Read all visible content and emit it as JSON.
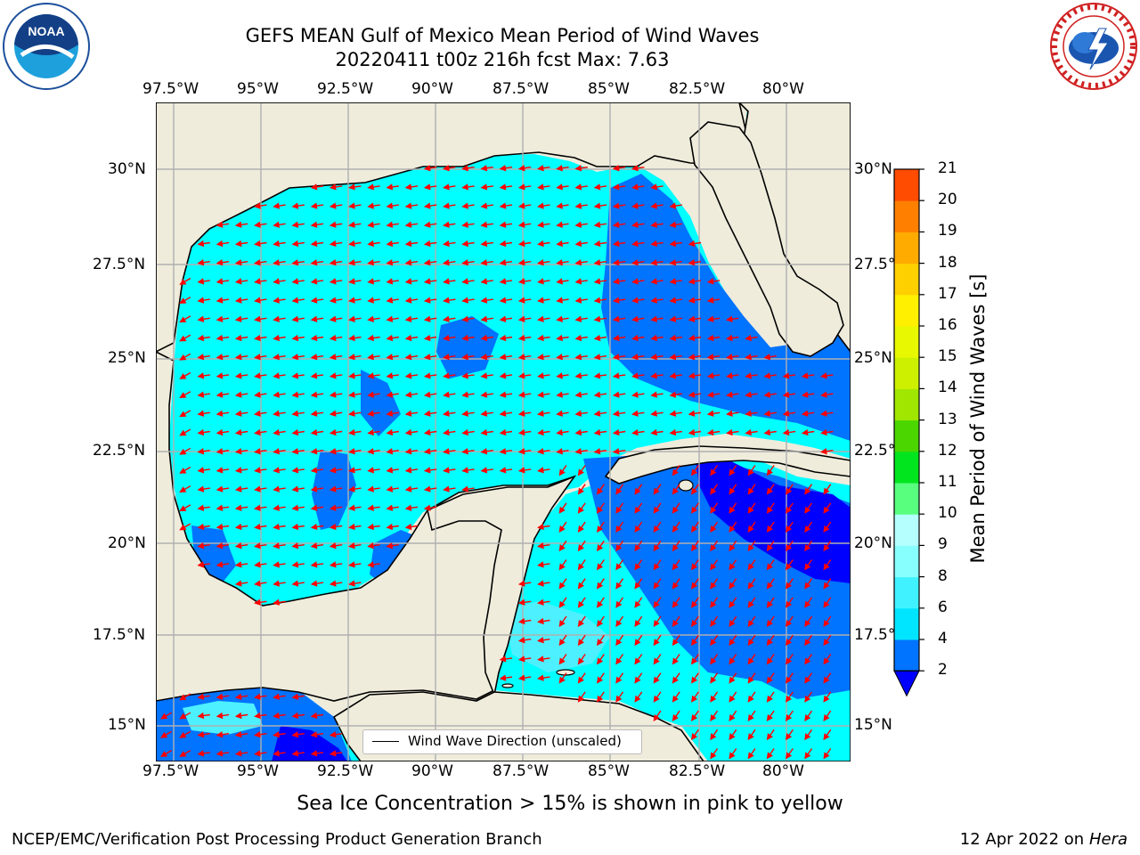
{
  "header": {
    "title_line1": "GEFS MEAN Gulf of Mexico Mean Period of Wind Waves",
    "title_line2": "20220411 t00z 216h fcst   Max: 7.63"
  },
  "logos": {
    "left": "NOAA",
    "left_ring_text": "NATIONAL OCEANIC AND ATMOSPHERIC ADMINISTRATION · U.S. DEPARTMENT OF COMMERCE",
    "right_ring_text": "NATIONAL WEATHER SERVICE"
  },
  "map": {
    "lon_labels": [
      "97.5°W",
      "95°W",
      "92.5°W",
      "90°W",
      "87.5°W",
      "85°W",
      "82.5°W",
      "80°W"
    ],
    "lat_labels_left": [
      "30°N",
      "27.5°N",
      "25°N",
      "22.5°N",
      "20°N",
      "17.5°N",
      "15°N"
    ],
    "lat_labels_right": [
      "30°N",
      "27.5°N",
      "25°N",
      "22.5°N",
      "20°N",
      "17.5°N",
      "15°N"
    ],
    "land_color": "#efecdc",
    "legend_label": "Wind Wave Direction (unscaled)",
    "arrow_color": "#ff0000",
    "wind_direction": "west-southwest (westward flow)"
  },
  "colorbar": {
    "label": "Mean Period of Wind Waves [s]",
    "ticks": [
      "2",
      "4",
      "6",
      "8",
      "9",
      "10",
      "11",
      "12",
      "13",
      "14",
      "15",
      "16",
      "17",
      "18",
      "19",
      "20",
      "21"
    ],
    "colors": [
      "#0073ff",
      "#00e5ff",
      "#40f2ff",
      "#87ffff",
      "#b5ffff",
      "#58ff7f",
      "#00e51e",
      "#4cd600",
      "#a0e600",
      "#ccf000",
      "#e8f800",
      "#fff000",
      "#ffd000",
      "#ffab00",
      "#ff8000",
      "#ff4c00",
      "#ff1e00",
      "#ff0000"
    ],
    "under_color": "#0000ff",
    "field_colors": {
      "cyan": "#00ffff",
      "light": "#4df0ff",
      "blue": "#0073ff",
      "dark": "#0000ff"
    }
  },
  "footer": {
    "note": "Sea Ice Concentration > 15% is shown in pink to yellow",
    "left": "NCEP/EMC/Verification Post Processing Product Generation Branch",
    "right_date": "12 Apr 2022 on ",
    "right_host": "Hera"
  }
}
